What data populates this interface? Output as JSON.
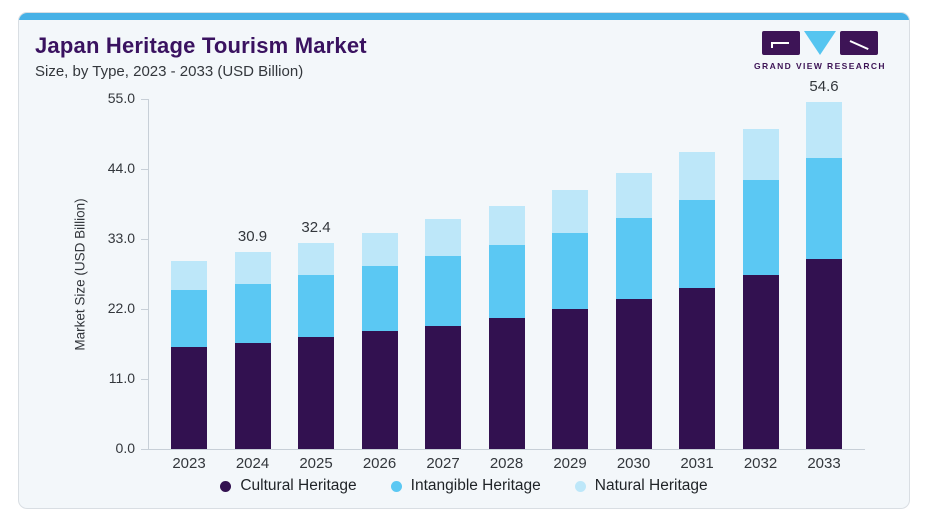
{
  "header": {
    "title": "Japan Heritage Tourism Market",
    "subtitle": "Size, by Type, 2023 - 2033 (USD Billion)"
  },
  "logo": {
    "text": "GRAND VIEW RESEARCH"
  },
  "colors": {
    "accent_bar": "#47b1e6",
    "title_text": "#3a1260",
    "cultural": "#321150",
    "intangible": "#5bc8f3",
    "natural": "#bde7f9",
    "axis_line": "#c7cfd7",
    "body_text": "#33373c",
    "card_bg": "#f3f7fa",
    "logo_purple": "#3d1456",
    "logo_triangle": "#56c5f0"
  },
  "chart_data": {
    "type": "bar",
    "stacked": true,
    "title": "Japan Heritage Tourism Market",
    "subtitle": "Size, by Type, 2023 - 2033 (USD Billion)",
    "xlabel": "",
    "ylabel": "Market Size (USD Billion)",
    "ylim": [
      0,
      55
    ],
    "y_ticks": [
      0,
      11,
      22,
      33,
      44,
      55
    ],
    "y_tick_labels": [
      "0.0",
      "11.0",
      "22.0",
      "33.0",
      "44.0",
      "55.0"
    ],
    "grid": false,
    "legend_position": "bottom",
    "categories": [
      "2023",
      "2024",
      "2025",
      "2026",
      "2027",
      "2028",
      "2029",
      "2030",
      "2031",
      "2032",
      "2033"
    ],
    "series": [
      {
        "name": "Cultural Heritage",
        "color_key": "cultural",
        "values": [
          16.0,
          16.6,
          17.6,
          18.6,
          19.4,
          20.6,
          22.0,
          23.6,
          25.3,
          27.3,
          29.9
        ]
      },
      {
        "name": "Intangible Heritage",
        "color_key": "intangible",
        "values": [
          9.0,
          9.4,
          9.8,
          10.1,
          10.9,
          11.5,
          12.0,
          12.7,
          13.8,
          15.0,
          15.9
        ]
      },
      {
        "name": "Natural Heritage",
        "color_key": "natural",
        "values": [
          4.6,
          4.9,
          5.0,
          5.3,
          5.8,
          6.1,
          6.7,
          7.1,
          7.5,
          8.0,
          8.8
        ]
      }
    ],
    "totals": [
      29.6,
      30.9,
      32.4,
      34.0,
      36.1,
      38.2,
      40.7,
      43.4,
      46.6,
      50.3,
      54.6
    ],
    "bar_labels": [
      "",
      "30.9",
      "32.4",
      "",
      "",
      "",
      "",
      "",
      "",
      "",
      "54.6"
    ]
  },
  "legend": {
    "items": [
      {
        "label": "Cultural Heritage",
        "color_key": "cultural"
      },
      {
        "label": "Intangible Heritage",
        "color_key": "intangible"
      },
      {
        "label": "Natural Heritage",
        "color_key": "natural"
      }
    ]
  }
}
